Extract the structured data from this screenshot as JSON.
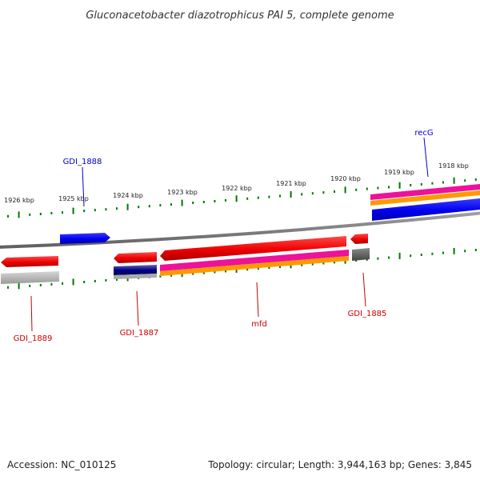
{
  "title": "Gluconacetobacter diazotrophicus PAI 5, complete genome",
  "accession": "Accession: NC_010125",
  "summary": "Topology: circular; Length: 3,944,163 bp; Genes: 3,845",
  "scale": {
    "unit": "kbp",
    "ticks": [
      "1926 kbp",
      "1925 kbp",
      "1924 kbp",
      "1923 kbp",
      "1922 kbp",
      "1921 kbp",
      "1920 kbp",
      "1919 kbp",
      "1918 kbp"
    ]
  },
  "genes": [
    {
      "name": "recG",
      "strand": "+",
      "color": "#0000ee",
      "label_color": "#0000cc"
    },
    {
      "name": "GDI_1888",
      "strand": "+",
      "color": "#0000ee",
      "label_color": "#0000cc"
    },
    {
      "name": "GDI_1889",
      "strand": "-",
      "color": "#ee0000",
      "label_color": "#cc0000"
    },
    {
      "name": "GDI_1887",
      "strand": "-",
      "color": "#ee0000",
      "label_color": "#cc0000"
    },
    {
      "name": "mfd",
      "strand": "-",
      "color": "#ee0000",
      "label_color": "#cc0000"
    },
    {
      "name": "GDI_1885",
      "strand": "-",
      "color": "#ee0000",
      "label_color": "#cc0000"
    }
  ],
  "colors": {
    "backbone": "#808080",
    "tick": "#007700",
    "plus_gene": "#0000ee",
    "minus_gene": "#ee0000",
    "magenta_track": "#ee1199",
    "orange_track": "#ff9900",
    "gray_track": "#aaaaaa",
    "navy_track": "#000088"
  }
}
